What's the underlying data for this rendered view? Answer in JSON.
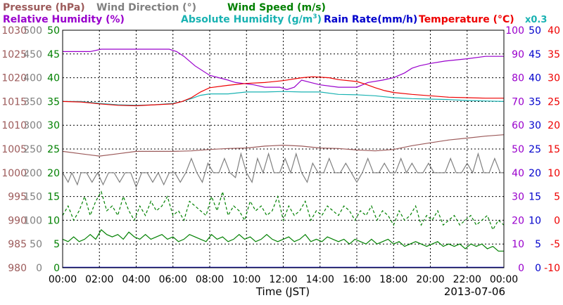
{
  "chart_data": {
    "type": "line",
    "date": "2013-07-06",
    "xlabel": "Time (JST)",
    "x_ticks": [
      "00:00",
      "02:00",
      "04:00",
      "06:00",
      "08:00",
      "10:00",
      "12:00",
      "14:00",
      "16:00",
      "18:00",
      "20:00",
      "22:00",
      "00:00"
    ],
    "x_range_hours": [
      0,
      24
    ],
    "grid": true,
    "legend": {
      "pressure": "Pressure (hPa)",
      "wind_direction": "Wind Direction (°)",
      "wind_speed": "Wind Speed (m/s)",
      "relative_humidity": "Relative Humidity (%)",
      "absolute_humidity": "Absolute Humidity (g/m",
      "absolute_humidity_sup": "3",
      "absolute_humidity_close": ")",
      "rain_rate": "Rain Rate(mm/h)",
      "temperature": "Temperature (°C)",
      "scale_note": "x0.3"
    },
    "axes": {
      "pressure": {
        "min": 980,
        "max": 1030,
        "ticks": [
          "980",
          "985",
          "990",
          "995",
          "1000",
          "1005",
          "1010",
          "1015",
          "1020",
          "1025",
          "1030"
        ],
        "color": "#9c5a5a"
      },
      "wind_direction": {
        "min": 0,
        "max": 500,
        "ticks": [
          "0",
          "50",
          "100",
          "150",
          "200",
          "250",
          "300",
          "350",
          "400",
          "450",
          "500"
        ],
        "color": "#808080"
      },
      "wind_speed": {
        "min": 0,
        "max": 50,
        "ticks": [
          "0",
          "5",
          "10",
          "15",
          "20",
          "25",
          "30",
          "35",
          "40",
          "45",
          "50"
        ],
        "color": "#008000"
      },
      "relative_humidity": {
        "min": 0,
        "max": 100,
        "ticks": [
          "0",
          "10",
          "20",
          "30",
          "40",
          "50",
          "60",
          "70",
          "80",
          "90",
          "100"
        ],
        "color": "#9900cc"
      },
      "rain_rate": {
        "min": 0,
        "max": 50,
        "ticks": [
          "0",
          "5",
          "10",
          "15",
          "20",
          "25",
          "30",
          "35",
          "40",
          "45",
          "50"
        ],
        "color": "#0000cc"
      },
      "temperature": {
        "min": -10,
        "max": 40,
        "ticks": [
          "-10",
          "-5",
          "0",
          "5",
          "10",
          "15",
          "20",
          "25",
          "30",
          "35",
          "40"
        ],
        "color": "#ee0000"
      }
    },
    "series": [
      {
        "key": "relative_humidity",
        "axis": "relative_humidity",
        "color": "#9900cc",
        "dash": "",
        "x": [
          0,
          1.5,
          2.1,
          5.8,
          6.2,
          6.6,
          7.2,
          8.0,
          9.0,
          9.4,
          10.4,
          11.0,
          11.8,
          12.2,
          12.6,
          13.0,
          13.5,
          14.0,
          15.0,
          16.0,
          16.6,
          17.4,
          18.0,
          18.6,
          19.0,
          19.4,
          20.0,
          20.8,
          22.0,
          23.0,
          24.0
        ],
        "y": [
          91,
          91,
          92,
          92,
          91,
          89,
          85,
          81,
          79,
          78,
          77,
          76,
          76,
          75,
          76,
          79,
          78,
          77,
          76,
          76,
          78,
          79,
          80,
          82,
          84,
          85,
          86,
          87,
          88,
          89,
          89
        ]
      },
      {
        "key": "absolute_humidity",
        "axis": "temperature",
        "color": "#19b2b2",
        "dash": "",
        "x": [
          0,
          1,
          2,
          3,
          4,
          5,
          6,
          6.5,
          7,
          7.5,
          8,
          9,
          10,
          11,
          12,
          13,
          14,
          15,
          16,
          17,
          18,
          19,
          20,
          21,
          22,
          23,
          24
        ],
        "y": [
          25,
          25,
          24.6,
          24.3,
          24.2,
          24.3,
          24.6,
          25,
          25.6,
          26.3,
          26.6,
          26.6,
          27,
          27,
          27.1,
          27,
          27,
          26.5,
          26.4,
          26.2,
          25.8,
          25.6,
          25.5,
          25.4,
          25.2,
          25.1,
          25
        ]
      },
      {
        "key": "temperature",
        "axis": "temperature",
        "color": "#ee0000",
        "dash": "",
        "x": [
          0,
          1,
          2,
          3,
          4,
          5,
          6,
          6.5,
          7,
          7.5,
          8,
          9,
          10,
          11,
          12,
          13,
          13.6,
          14.5,
          15,
          16,
          16.5,
          17,
          17.5,
          18,
          19,
          20,
          21,
          22,
          23,
          24
        ],
        "y": [
          25,
          24.9,
          24.5,
          24.2,
          24.1,
          24.3,
          24.5,
          25,
          25.8,
          27,
          27.9,
          28.4,
          28.8,
          29,
          29.4,
          30,
          30.2,
          30,
          29.6,
          29.2,
          28.6,
          27.9,
          27.3,
          26.9,
          26.5,
          26.2,
          25.9,
          25.8,
          25.7,
          25.7
        ]
      },
      {
        "key": "pressure",
        "axis": "pressure",
        "color": "#9c5a5a",
        "dash": "",
        "x": [
          0,
          1,
          2,
          3,
          4,
          5,
          6,
          7,
          8,
          9,
          10,
          11,
          12,
          13,
          14,
          15,
          16,
          17,
          18,
          19,
          20,
          21,
          22,
          23,
          24
        ],
        "y": [
          1004.5,
          1004,
          1003.5,
          1004,
          1004.5,
          1004.5,
          1004.5,
          1004.6,
          1004.9,
          1005.1,
          1005.2,
          1005.6,
          1005.8,
          1005.6,
          1005.2,
          1005.1,
          1004.8,
          1004.6,
          1004.9,
          1005.7,
          1006.3,
          1006.9,
          1007.3,
          1007.7,
          1008
        ]
      },
      {
        "key": "wind_direction",
        "axis": "wind_direction",
        "color": "#808080",
        "dash": "",
        "x": [
          0,
          0.3,
          0.5,
          0.8,
          1.0,
          1.3,
          1.6,
          1.9,
          2.2,
          2.5,
          2.8,
          3.1,
          3.4,
          3.7,
          4.0,
          4.3,
          4.6,
          4.9,
          5.2,
          5.5,
          5.8,
          6.1,
          6.4,
          6.7,
          7.0,
          7.3,
          7.6,
          7.9,
          8.2,
          8.5,
          8.8,
          9.1,
          9.4,
          9.7,
          10.0,
          10.3,
          10.6,
          10.9,
          11.2,
          11.5,
          11.8,
          12.1,
          12.4,
          12.7,
          13.0,
          13.3,
          13.6,
          13.9,
          14.2,
          14.5,
          14.8,
          15.1,
          15.4,
          15.7,
          16.0,
          16.3,
          16.6,
          16.9,
          17.2,
          17.5,
          17.8,
          18.1,
          18.4,
          18.7,
          19.0,
          19.3,
          19.6,
          19.9,
          20.2,
          20.5,
          20.8,
          21.1,
          21.4,
          21.7,
          22.0,
          22.3,
          22.6,
          22.9,
          23.2,
          23.5,
          23.8,
          24.0
        ],
        "y": [
          200,
          180,
          200,
          175,
          200,
          200,
          180,
          200,
          175,
          200,
          200,
          180,
          200,
          200,
          170,
          200,
          200,
          180,
          200,
          175,
          200,
          200,
          180,
          200,
          230,
          200,
          180,
          220,
          200,
          200,
          230,
          200,
          190,
          240,
          200,
          180,
          230,
          200,
          240,
          200,
          200,
          230,
          200,
          240,
          200,
          180,
          220,
          200,
          200,
          230,
          200,
          200,
          220,
          200,
          180,
          200,
          230,
          200,
          200,
          220,
          200,
          200,
          230,
          200,
          220,
          200,
          200,
          220,
          200,
          200,
          200,
          230,
          200,
          200,
          220,
          200,
          240,
          200,
          200,
          230,
          200,
          200
        ]
      },
      {
        "key": "wind_speed_gust",
        "axis": "wind_speed",
        "color": "#008000",
        "dash": "4,3",
        "x": [
          0,
          0.3,
          0.6,
          0.9,
          1.2,
          1.5,
          1.8,
          2.1,
          2.4,
          2.7,
          3.0,
          3.3,
          3.6,
          3.9,
          4.2,
          4.5,
          4.8,
          5.1,
          5.4,
          5.7,
          6.0,
          6.3,
          6.6,
          6.9,
          7.2,
          7.5,
          7.8,
          8.1,
          8.4,
          8.7,
          9.0,
          9.3,
          9.6,
          9.9,
          10.2,
          10.5,
          10.8,
          11.1,
          11.4,
          11.7,
          12.0,
          12.3,
          12.6,
          12.9,
          13.2,
          13.5,
          13.8,
          14.1,
          14.4,
          14.7,
          15.0,
          15.3,
          15.6,
          15.9,
          16.2,
          16.5,
          16.8,
          17.1,
          17.4,
          17.7,
          18.0,
          18.3,
          18.6,
          18.9,
          19.2,
          19.5,
          19.8,
          20.1,
          20.4,
          20.7,
          21.0,
          21.3,
          21.6,
          21.9,
          22.2,
          22.5,
          22.8,
          23.1,
          23.4,
          23.7,
          24.0
        ],
        "y": [
          11,
          13,
          10,
          12,
          15,
          11,
          14,
          16,
          12,
          13,
          11,
          15,
          12,
          10,
          13,
          11,
          14,
          12,
          13,
          15,
          11,
          12,
          10,
          14,
          13,
          12,
          11,
          15,
          12,
          16,
          11,
          13,
          12,
          10,
          14,
          12,
          13,
          11,
          12,
          15,
          10,
          13,
          11,
          12,
          14,
          10,
          12,
          11,
          13,
          12,
          11,
          13,
          12,
          10,
          12,
          11,
          13,
          10,
          12,
          11,
          9,
          12,
          10,
          11,
          13,
          9,
          11,
          10,
          12,
          9,
          10,
          11,
          9,
          10,
          11,
          9,
          10,
          11,
          8,
          10,
          9
        ]
      },
      {
        "key": "wind_speed",
        "axis": "wind_speed",
        "color": "#008000",
        "dash": "",
        "x": [
          0,
          0.3,
          0.6,
          0.9,
          1.2,
          1.5,
          1.8,
          2.1,
          2.4,
          2.7,
          3.0,
          3.3,
          3.6,
          3.9,
          4.2,
          4.5,
          4.8,
          5.1,
          5.4,
          5.7,
          6.0,
          6.3,
          6.6,
          6.9,
          7.2,
          7.5,
          7.8,
          8.1,
          8.4,
          8.7,
          9.0,
          9.3,
          9.6,
          9.9,
          10.2,
          10.5,
          10.8,
          11.1,
          11.4,
          11.7,
          12.0,
          12.3,
          12.6,
          12.9,
          13.2,
          13.5,
          13.8,
          14.1,
          14.4,
          14.7,
          15.0,
          15.3,
          15.6,
          15.9,
          16.2,
          16.5,
          16.8,
          17.1,
          17.4,
          17.7,
          18.0,
          18.3,
          18.6,
          18.9,
          19.2,
          19.5,
          19.8,
          20.1,
          20.4,
          20.7,
          21.0,
          21.3,
          21.6,
          21.9,
          22.2,
          22.5,
          22.8,
          23.1,
          23.4,
          23.7,
          24.0
        ],
        "y": [
          6,
          5.5,
          6.5,
          5.5,
          6,
          7,
          6,
          8,
          7,
          6.5,
          7,
          6,
          7.5,
          6.5,
          6,
          7,
          6,
          6.5,
          7,
          6,
          6.5,
          5.5,
          6,
          7,
          6.5,
          6,
          5.5,
          7,
          6,
          6.5,
          5.5,
          6,
          7,
          6,
          6.5,
          5.5,
          6,
          7,
          6,
          5.5,
          6,
          6.5,
          5.5,
          6,
          7,
          5.5,
          6,
          5.5,
          6.5,
          6,
          5.5,
          6,
          5,
          6,
          5.5,
          5,
          6,
          5,
          5.5,
          6,
          5,
          5.5,
          4.5,
          5,
          5.5,
          5,
          4.5,
          5,
          5.5,
          4.5,
          5,
          4.5,
          5,
          4,
          5,
          4.5,
          5,
          4,
          4.5,
          3.5,
          3.5
        ]
      }
    ]
  }
}
